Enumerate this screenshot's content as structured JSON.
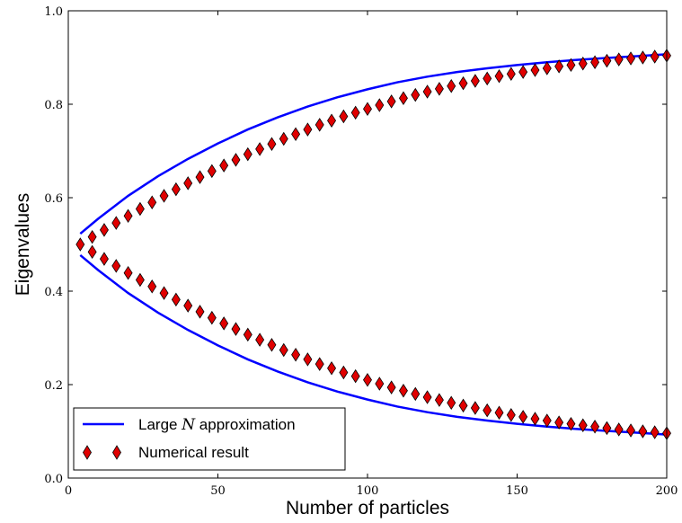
{
  "chart_data": {
    "type": "line",
    "title": "",
    "xlabel": "Number of particles",
    "ylabel": "Eigenvalues",
    "xlim": [
      0,
      200
    ],
    "ylim": [
      0.0,
      1.0
    ],
    "xticks": [
      "0",
      "50",
      "100",
      "150",
      "200"
    ],
    "yticks": [
      "0.0",
      "0.2",
      "0.4",
      "0.6",
      "0.8",
      "1.0"
    ],
    "legend_position": "lower-left",
    "legend": {
      "line_label_pre": "Large ",
      "line_label_var": "N",
      "line_label_post": " approximation",
      "marker_label": "Numerical result"
    },
    "colors": {
      "line": "#0000ff",
      "marker_fill": "#e00000",
      "marker_edge": "#000000"
    },
    "approximation": {
      "name": "Large N approximation",
      "x": [
        4,
        10,
        20,
        30,
        40,
        50,
        60,
        70,
        80,
        90,
        100,
        110,
        120,
        130,
        140,
        150,
        160,
        170,
        180,
        190,
        200
      ],
      "upper": [
        0.523,
        0.555,
        0.604,
        0.646,
        0.683,
        0.716,
        0.746,
        0.772,
        0.795,
        0.815,
        0.832,
        0.847,
        0.859,
        0.869,
        0.877,
        0.884,
        0.89,
        0.895,
        0.899,
        0.903,
        0.907
      ],
      "lower": [
        0.477,
        0.445,
        0.396,
        0.354,
        0.317,
        0.284,
        0.254,
        0.228,
        0.205,
        0.185,
        0.168,
        0.153,
        0.141,
        0.131,
        0.123,
        0.116,
        0.11,
        0.105,
        0.101,
        0.097,
        0.093
      ]
    },
    "numerical": {
      "name": "Numerical result",
      "x": [
        4,
        8,
        12,
        16,
        20,
        24,
        28,
        32,
        36,
        40,
        44,
        48,
        52,
        56,
        60,
        64,
        68,
        72,
        76,
        80,
        84,
        88,
        92,
        96,
        100,
        104,
        108,
        112,
        116,
        120,
        124,
        128,
        132,
        136,
        140,
        144,
        148,
        152,
        156,
        160,
        164,
        168,
        172,
        176,
        180,
        184,
        188,
        192,
        196,
        200
      ],
      "upper": [
        0.5,
        0.516,
        0.531,
        0.546,
        0.561,
        0.576,
        0.59,
        0.604,
        0.618,
        0.631,
        0.644,
        0.657,
        0.669,
        0.681,
        0.693,
        0.704,
        0.715,
        0.726,
        0.736,
        0.746,
        0.756,
        0.765,
        0.774,
        0.782,
        0.79,
        0.798,
        0.806,
        0.813,
        0.82,
        0.827,
        0.833,
        0.839,
        0.845,
        0.85,
        0.855,
        0.86,
        0.865,
        0.869,
        0.873,
        0.877,
        0.881,
        0.884,
        0.887,
        0.89,
        0.893,
        0.896,
        0.898,
        0.9,
        0.902,
        0.904
      ],
      "lower": [
        0.5,
        0.484,
        0.469,
        0.454,
        0.439,
        0.424,
        0.41,
        0.396,
        0.382,
        0.369,
        0.356,
        0.343,
        0.331,
        0.319,
        0.307,
        0.296,
        0.285,
        0.274,
        0.264,
        0.254,
        0.244,
        0.235,
        0.226,
        0.218,
        0.21,
        0.202,
        0.194,
        0.187,
        0.18,
        0.173,
        0.167,
        0.161,
        0.155,
        0.15,
        0.145,
        0.14,
        0.135,
        0.131,
        0.127,
        0.123,
        0.119,
        0.116,
        0.113,
        0.11,
        0.107,
        0.104,
        0.102,
        0.1,
        0.098,
        0.096
      ]
    }
  }
}
